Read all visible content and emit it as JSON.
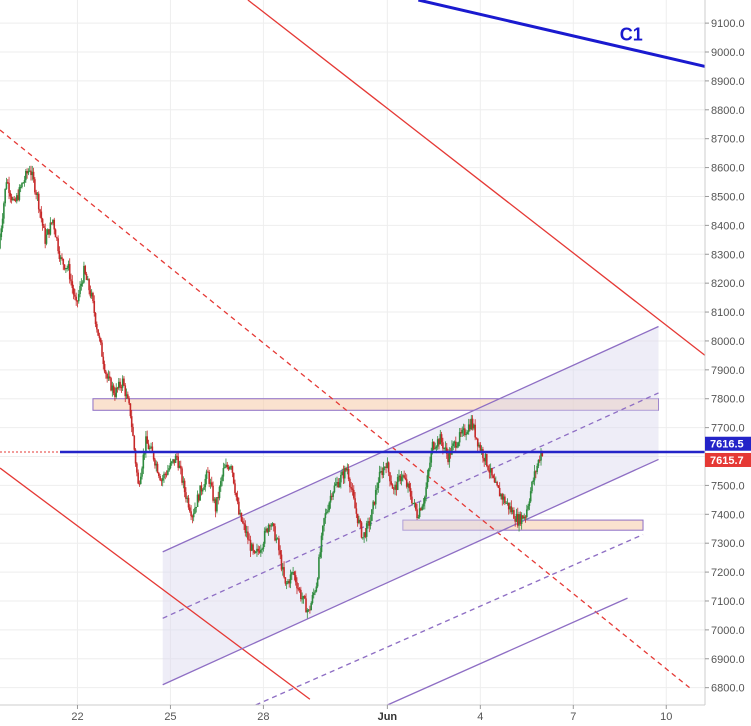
{
  "chart_data": {
    "type": "candlestick",
    "title": "",
    "xlabel": "",
    "ylabel": "",
    "ylim": [
      6740,
      9180
    ],
    "xlim_days": [
      "2019-05-19 12:00",
      "2019-06-11 06:00"
    ],
    "y_ticks": [
      6800,
      6900,
      7000,
      7100,
      7200,
      7300,
      7400,
      7500,
      7600,
      7700,
      7800,
      7900,
      8000,
      8100,
      8200,
      8300,
      8400,
      8500,
      8600,
      8700,
      8800,
      8900,
      9000,
      9100
    ],
    "y_tick_labels": [
      "6800.0",
      "6900.0",
      "7000.0",
      "7100.0",
      "7200.0",
      "7300.0",
      "7400.0",
      "7500.0",
      "7600.0",
      "7700.0",
      "7800.0",
      "7900.0",
      "8000.0",
      "8100.0",
      "8200.0",
      "8300.0",
      "8400.0",
      "8500.0",
      "8600.0",
      "8700.0",
      "8800.0",
      "8900.0",
      "9000.0",
      "9100.0"
    ],
    "x_ticks": [
      {
        "label": "22",
        "date": "2019-05-22",
        "bold": false
      },
      {
        "label": "25",
        "date": "2019-05-25",
        "bold": false
      },
      {
        "label": "28",
        "date": "2019-05-28",
        "bold": false
      },
      {
        "label": "Jun",
        "date": "2019-06-01",
        "bold": true
      },
      {
        "label": "4",
        "date": "2019-06-04",
        "bold": false
      },
      {
        "label": "7",
        "date": "2019-06-07",
        "bold": false
      },
      {
        "label": "10",
        "date": "2019-06-10",
        "bold": false
      }
    ],
    "price_path": [
      [
        "2019-05-19 12:00",
        8320
      ],
      [
        "2019-05-19 18:00",
        8560
      ],
      [
        "2019-05-20 00:00",
        8470
      ],
      [
        "2019-05-20 06:00",
        8540
      ],
      [
        "2019-05-20 12:00",
        8600
      ],
      [
        "2019-05-20 18:00",
        8500
      ],
      [
        "2019-05-21 00:00",
        8350
      ],
      [
        "2019-05-21 06:00",
        8420
      ],
      [
        "2019-05-21 12:00",
        8280
      ],
      [
        "2019-05-21 18:00",
        8250
      ],
      [
        "2019-05-22 00:00",
        8120
      ],
      [
        "2019-05-22 06:00",
        8240
      ],
      [
        "2019-05-22 12:00",
        8150
      ],
      [
        "2019-05-22 18:00",
        8000
      ],
      [
        "2019-05-23 00:00",
        7870
      ],
      [
        "2019-05-23 06:00",
        7820
      ],
      [
        "2019-05-23 12:00",
        7860
      ],
      [
        "2019-05-23 18:00",
        7750
      ],
      [
        "2019-05-24 00:00",
        7500
      ],
      [
        "2019-05-24 06:00",
        7650
      ],
      [
        "2019-05-24 12:00",
        7600
      ],
      [
        "2019-05-24 18:00",
        7520
      ],
      [
        "2019-05-25 00:00",
        7560
      ],
      [
        "2019-05-25 06:00",
        7600
      ],
      [
        "2019-05-25 12:00",
        7480
      ],
      [
        "2019-05-25 18:00",
        7400
      ],
      [
        "2019-05-26 00:00",
        7480
      ],
      [
        "2019-05-26 06:00",
        7540
      ],
      [
        "2019-05-26 12:00",
        7420
      ],
      [
        "2019-05-26 18:00",
        7550
      ],
      [
        "2019-05-27 00:00",
        7580
      ],
      [
        "2019-05-27 06:00",
        7400
      ],
      [
        "2019-05-27 12:00",
        7330
      ],
      [
        "2019-05-27 18:00",
        7250
      ],
      [
        "2019-05-28 00:00",
        7300
      ],
      [
        "2019-05-28 06:00",
        7380
      ],
      [
        "2019-05-28 12:00",
        7300
      ],
      [
        "2019-05-28 18:00",
        7150
      ],
      [
        "2019-05-29 00:00",
        7200
      ],
      [
        "2019-05-29 06:00",
        7120
      ],
      [
        "2019-05-29 12:00",
        7060
      ],
      [
        "2019-05-29 18:00",
        7160
      ],
      [
        "2019-05-30 00:00",
        7380
      ],
      [
        "2019-05-30 06:00",
        7480
      ],
      [
        "2019-05-30 12:00",
        7520
      ],
      [
        "2019-05-30 18:00",
        7560
      ],
      [
        "2019-05-31 00:00",
        7420
      ],
      [
        "2019-05-31 06:00",
        7320
      ],
      [
        "2019-05-31 12:00",
        7380
      ],
      [
        "2019-05-31 18:00",
        7520
      ],
      [
        "2019-06-01 00:00",
        7580
      ],
      [
        "2019-06-01 06:00",
        7480
      ],
      [
        "2019-06-01 12:00",
        7540
      ],
      [
        "2019-06-01 18:00",
        7480
      ],
      [
        "2019-06-02 00:00",
        7400
      ],
      [
        "2019-06-02 06:00",
        7460
      ],
      [
        "2019-06-02 12:00",
        7640
      ],
      [
        "2019-06-02 18:00",
        7660
      ],
      [
        "2019-06-03 00:00",
        7600
      ],
      [
        "2019-06-03 06:00",
        7650
      ],
      [
        "2019-06-03 12:00",
        7680
      ],
      [
        "2019-06-03 18:00",
        7720
      ],
      [
        "2019-06-04 00:00",
        7640
      ],
      [
        "2019-06-04 06:00",
        7580
      ],
      [
        "2019-06-04 12:00",
        7500
      ],
      [
        "2019-06-04 18:00",
        7460
      ],
      [
        "2019-06-05 00:00",
        7420
      ],
      [
        "2019-06-05 06:00",
        7380
      ],
      [
        "2019-06-05 12:00",
        7400
      ],
      [
        "2019-06-05 18:00",
        7520
      ],
      [
        "2019-06-06 00:00",
        7616
      ]
    ],
    "series": [
      {
        "name": "",
        "kind": "price_level",
        "value": 7615.7,
        "color": "#2424c8",
        "style": "solid"
      }
    ],
    "annotations": [
      {
        "kind": "label",
        "text": "C1",
        "color": "#1a1acf"
      }
    ],
    "lines": [
      {
        "kind": "trendline",
        "color": "#1a1acf",
        "points": [
          [
            "2019-06-02 00:00",
            9180
          ],
          [
            "2019-06-11 06:00",
            8950
          ]
        ]
      },
      {
        "kind": "trendline",
        "color": "#e53935",
        "points": [
          [
            "2019-05-27 12:00",
            9180
          ],
          [
            "2019-06-11 06:00",
            7950
          ]
        ]
      },
      {
        "kind": "trendline",
        "color": "#e53935",
        "points": [
          [
            "2019-05-19 12:00",
            7560
          ],
          [
            "2019-05-29 12:00",
            6760
          ]
        ]
      },
      {
        "kind": "trendline_dashed",
        "color": "#e53935",
        "points": [
          [
            "2019-05-19 12:00",
            8730
          ],
          [
            "2019-06-10 18:00",
            6800
          ]
        ]
      },
      {
        "kind": "channel_upper",
        "color": "#8e6ec4",
        "points": [
          [
            "2019-05-24 18:00",
            7270
          ],
          [
            "2019-06-09 18:00",
            8050
          ]
        ]
      },
      {
        "kind": "channel_lower",
        "color": "#8e6ec4",
        "points": [
          [
            "2019-05-24 18:00",
            6810
          ],
          [
            "2019-06-09 18:00",
            7590
          ]
        ]
      },
      {
        "kind": "channel_mid",
        "color": "#8e6ec4",
        "points": [
          [
            "2019-05-24 18:00",
            7040
          ],
          [
            "2019-06-09 18:00",
            7820
          ]
        ]
      },
      {
        "kind": "parallel_dashed",
        "color": "#8e6ec4",
        "points": [
          [
            "2019-05-27 18:00",
            6740
          ],
          [
            "2019-06-09 06:00",
            7330
          ]
        ]
      },
      {
        "kind": "parallel",
        "color": "#8e6ec4",
        "points": [
          [
            "2019-06-01 00:00",
            6740
          ],
          [
            "2019-06-08 18:00",
            7110
          ]
        ]
      }
    ],
    "zones": [
      {
        "color": "#f5cba7",
        "from": "2019-05-22 12:00",
        "to": "2019-06-09 18:00",
        "low": 7760,
        "high": 7800
      },
      {
        "color": "#f5cba7",
        "from": "2019-06-01 12:00",
        "to": "2019-06-09 06:00",
        "low": 7345,
        "high": 7380
      }
    ],
    "price_badges": [
      {
        "text": "7616.5",
        "color": "#2424c8"
      },
      {
        "text": "7615.7",
        "color": "#e53935"
      }
    ]
  }
}
